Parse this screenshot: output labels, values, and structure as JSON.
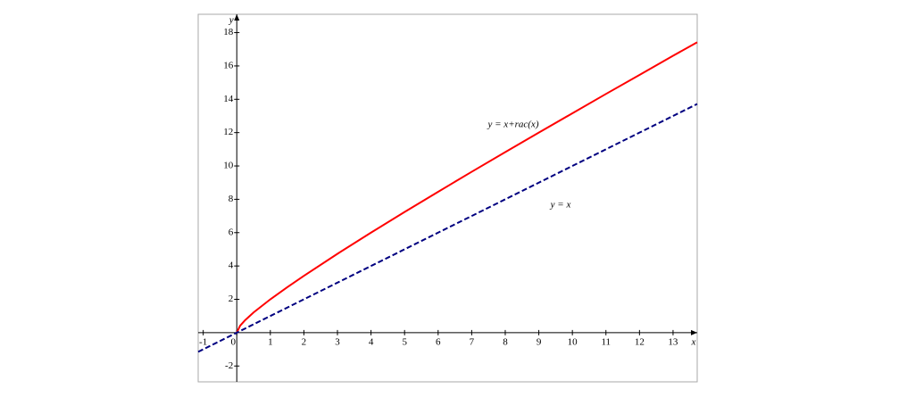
{
  "chart_data": {
    "type": "line",
    "x_label": "x",
    "y_label": "y",
    "x": [
      -1.15,
      0,
      0.1,
      0.25,
      0.5,
      1,
      1.5,
      2,
      3,
      4,
      5,
      6,
      7,
      8,
      9,
      10,
      11,
      12,
      13,
      13.72
    ],
    "series": [
      {
        "name": "y = x+rac(x)",
        "color": "#ff0000",
        "style": "solid",
        "values": [
          null,
          0,
          0.42,
          0.75,
          1.21,
          2,
          2.72,
          3.41,
          4.73,
          6,
          7.24,
          8.45,
          9.65,
          10.83,
          12,
          13.16,
          14.32,
          15.46,
          16.61,
          17.42
        ]
      },
      {
        "name": "y = x",
        "color": "#000080",
        "style": "dashed",
        "values": [
          -1.15,
          0,
          0.1,
          0.25,
          0.5,
          1,
          1.5,
          2,
          3,
          4,
          5,
          6,
          7,
          8,
          9,
          10,
          11,
          12,
          13,
          13.72
        ]
      }
    ],
    "xlim": [
      -1.15,
      13.72
    ],
    "ylim": [
      -2.95,
      19.1
    ],
    "xticks": [
      -1,
      0,
      1,
      2,
      3,
      4,
      5,
      6,
      7,
      8,
      9,
      10,
      11,
      12,
      13
    ],
    "yticks": [
      -2,
      2,
      4,
      6,
      8,
      10,
      12,
      14,
      16,
      18
    ],
    "grid": false
  }
}
